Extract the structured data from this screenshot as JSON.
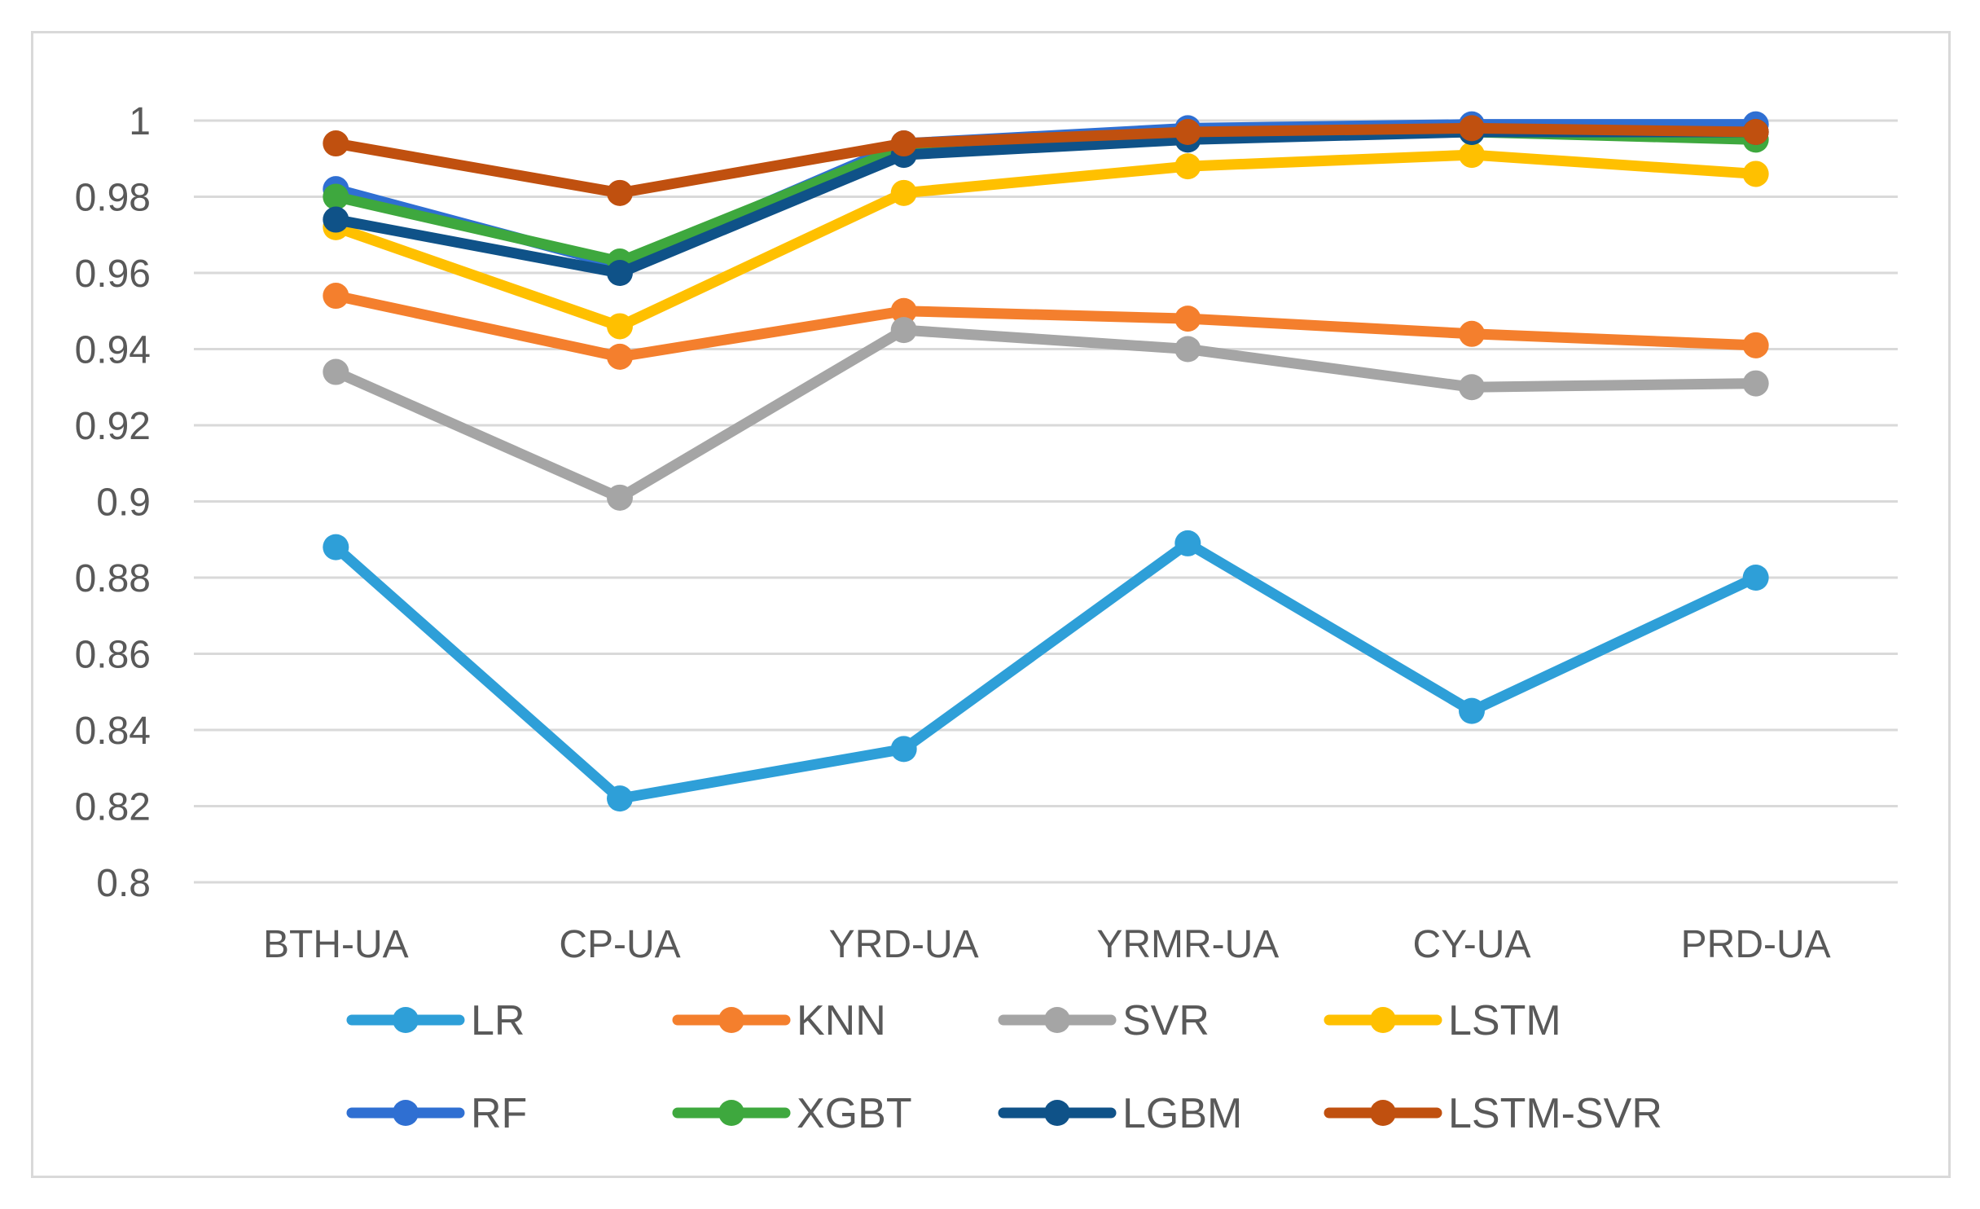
{
  "chart_data": {
    "type": "line",
    "title": "",
    "xlabel": "",
    "ylabel": "",
    "ylim": [
      0.8,
      1.0
    ],
    "yticks": [
      0.8,
      0.82,
      0.84,
      0.86,
      0.88,
      0.9,
      0.92,
      0.94,
      0.96,
      0.98,
      1
    ],
    "ytick_labels": [
      "0.8",
      "0.82",
      "0.84",
      "0.86",
      "0.88",
      "0.9",
      "0.92",
      "0.94",
      "0.96",
      "0.98",
      "1"
    ],
    "grid": true,
    "legend_position": "bottom",
    "categories": [
      "BTH-UA",
      "CP-UA",
      "YRD-UA",
      "YRMR-UA",
      "CY-UA",
      "PRD-UA"
    ],
    "series": [
      {
        "name": "LR",
        "color": "#2e9fd8",
        "values": [
          0.888,
          0.822,
          0.835,
          0.889,
          0.845,
          0.88
        ]
      },
      {
        "name": "KNN",
        "color": "#f47f2d",
        "values": [
          0.954,
          0.938,
          0.95,
          0.948,
          0.944,
          0.941
        ]
      },
      {
        "name": "SVR",
        "color": "#a5a5a5",
        "values": [
          0.934,
          0.901,
          0.945,
          0.94,
          0.93,
          0.931
        ]
      },
      {
        "name": "LSTM",
        "color": "#ffc000",
        "values": [
          0.972,
          0.946,
          0.981,
          0.988,
          0.991,
          0.986
        ]
      },
      {
        "name": "RF",
        "color": "#2f6fd2",
        "values": [
          0.982,
          0.962,
          0.994,
          0.998,
          0.999,
          0.999
        ]
      },
      {
        "name": "XGBT",
        "color": "#3ea83e",
        "values": [
          0.98,
          0.963,
          0.993,
          0.996,
          0.997,
          0.995
        ]
      },
      {
        "name": "LGBM",
        "color": "#0f5288",
        "values": [
          0.974,
          0.96,
          0.991,
          0.995,
          0.997,
          0.997
        ]
      },
      {
        "name": "LSTM-SVR",
        "color": "#c0500f",
        "values": [
          0.994,
          0.981,
          0.994,
          0.997,
          0.998,
          0.997
        ]
      }
    ]
  }
}
